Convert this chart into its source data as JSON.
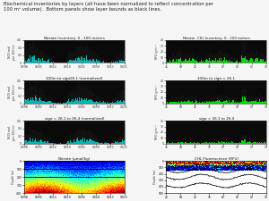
{
  "title_text": "Biochemical inventories by layers (all have been normalized to reflect concentration per\n100 m³ volume).  Bottom panels show layer bounds as black lines.",
  "left_panel_titles": [
    "Nitrate Inventory, 0 - 100 meters",
    "100m to sigσ26.1 (normalized)",
    "sigσ = 26.1 to 26.4 (normalized)",
    "Nitrate (μmol/kg)"
  ],
  "right_panel_titles": [
    "Nitrate  CHL Inventory, 0 - 100 meters",
    "100m to sigσ = 26.1",
    "sigσ = 26.1 to 26.4",
    "CHL Fluorescence (RFU)"
  ],
  "left_ylabels": [
    "NO3 mol per 100 m³",
    "NO3 mol per 100 m³",
    "NO3 mol per 100 m³",
    "Depth (m)"
  ],
  "right_ylabels": [
    "RFU g m⁻³",
    "RFU g m⁻³",
    "RFU g m⁻³",
    "Depth (m)"
  ],
  "fig_bg": "#f5f5f5",
  "axes_bg_bar": "#0a0a0a",
  "bar_color_left": "#00cccc",
  "bar_color_right": "#00cc00",
  "xtick_labels": [
    "02/98",
    "03/05",
    "03/12",
    "03/19",
    "04/02",
    "04/09",
    "04/13",
    "04/15"
  ],
  "right_xtick_labels": [
    "26",
    "09",
    "12",
    "16",
    "02",
    "02",
    "00",
    "10"
  ],
  "nitrate_ylim": [
    0,
    0.6
  ],
  "chl_ylim": [
    0,
    40
  ],
  "depth_ylim_nitrate": [
    0,
    400
  ],
  "depth_ylim_chl": [
    0,
    500
  ]
}
